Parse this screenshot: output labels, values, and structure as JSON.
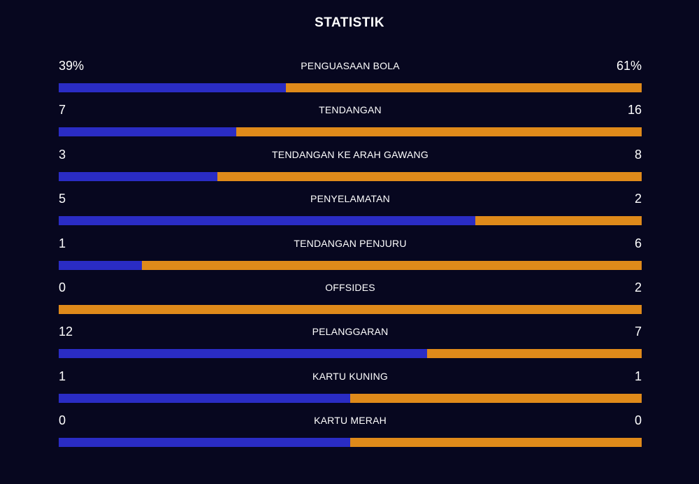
{
  "title": "STATISTIK",
  "colors": {
    "background": "#07071f",
    "home": "#2a2cc4",
    "away": "#df8a1a",
    "text": "#ffffff"
  },
  "chart_data": {
    "type": "bar",
    "orientation": "horizontal-stacked-comparison",
    "title": "STATISTIK",
    "stats": [
      {
        "name": "PENGUASAAN BOLA",
        "left": 39,
        "right": 61,
        "left_label": "39%",
        "right_label": "61%"
      },
      {
        "name": "TENDANGAN",
        "left": 7,
        "right": 16,
        "left_label": "7",
        "right_label": "16"
      },
      {
        "name": "TENDANGAN KE ARAH GAWANG",
        "left": 3,
        "right": 8,
        "left_label": "3",
        "right_label": "8"
      },
      {
        "name": "PENYELAMATAN",
        "left": 5,
        "right": 2,
        "left_label": "5",
        "right_label": "2"
      },
      {
        "name": "TENDANGAN PENJURU",
        "left": 1,
        "right": 6,
        "left_label": "1",
        "right_label": "6"
      },
      {
        "name": "OFFSIDES",
        "left": 0,
        "right": 2,
        "left_label": "0",
        "right_label": "2"
      },
      {
        "name": "PELANGGARAN",
        "left": 12,
        "right": 7,
        "left_label": "12",
        "right_label": "7"
      },
      {
        "name": "KARTU KUNING",
        "left": 1,
        "right": 1,
        "left_label": "1",
        "right_label": "1"
      },
      {
        "name": "KARTU MERAH",
        "left": 0,
        "right": 0,
        "left_label": "0",
        "right_label": "0"
      }
    ]
  }
}
